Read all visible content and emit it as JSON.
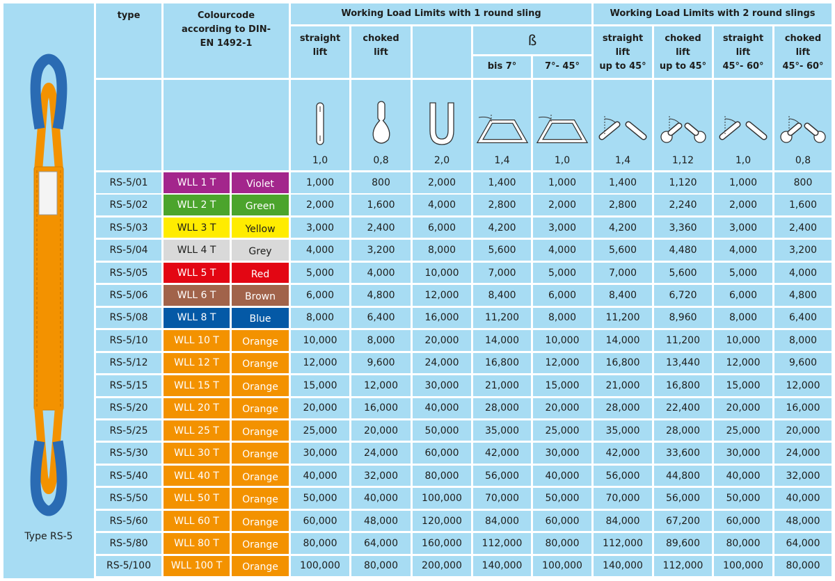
{
  "side": {
    "caption": "Type RS-5"
  },
  "header": {
    "type": "type",
    "colourcode": "Colourcode according to DIN-EN 1492-1",
    "group1": "Working Load Limits with 1 round sling",
    "group2": "Working Load Limits with 2 round slings",
    "beta": "ß",
    "columns": [
      {
        "lines": [
          "straight",
          "lift"
        ],
        "factor": "1,0"
      },
      {
        "lines": [
          "choked",
          "lift"
        ],
        "factor": "0,8"
      },
      {
        "factor": "2,0"
      },
      {
        "lines": [
          "bis 7°"
        ],
        "factor": "1,4"
      },
      {
        "lines": [
          "7°- 45°"
        ],
        "factor": "1,0"
      },
      {
        "lines": [
          "straight",
          "lift",
          "up to 45°"
        ],
        "factor": "1,4"
      },
      {
        "lines": [
          "choked",
          "lift",
          "up to 45°"
        ],
        "factor": "1,12"
      },
      {
        "lines": [
          "straight",
          "lift",
          "45°- 60°"
        ],
        "factor": "1,0"
      },
      {
        "lines": [
          "choked",
          "lift",
          "45°- 60°"
        ],
        "factor": "0,8"
      }
    ]
  },
  "rows": [
    {
      "type": "RS-5/01",
      "wll": "WLL 1 T",
      "colour": "Violet",
      "color": "#a3268c",
      "values": [
        "1,000",
        "800",
        "2,000",
        "1,400",
        "1,000",
        "1,400",
        "1,120",
        "1,000",
        "800"
      ]
    },
    {
      "type": "RS-5/02",
      "wll": "WLL 2 T",
      "colour": "Green",
      "color": "#4ba42c",
      "values": [
        "2,000",
        "1,600",
        "4,000",
        "2,800",
        "2,000",
        "2,800",
        "2,240",
        "2,000",
        "1,600"
      ]
    },
    {
      "type": "RS-5/03",
      "wll": "WLL 3 T",
      "colour": "Yellow",
      "color": "#ffec00",
      "values": [
        "3,000",
        "2,400",
        "6,000",
        "4,200",
        "3,000",
        "4,200",
        "3,360",
        "3,000",
        "2,400"
      ]
    },
    {
      "type": "RS-5/04",
      "wll": "WLL 4 T",
      "colour": "Grey",
      "color": "#d9d9d9",
      "values": [
        "4,000",
        "3,200",
        "8,000",
        "5,600",
        "4,000",
        "5,600",
        "4,480",
        "4,000",
        "3,200"
      ]
    },
    {
      "type": "RS-5/05",
      "wll": "WLL 5 T",
      "colour": "Red",
      "color": "#e30613",
      "values": [
        "5,000",
        "4,000",
        "10,000",
        "7,000",
        "5,000",
        "7,000",
        "5,600",
        "5,000",
        "4,000"
      ]
    },
    {
      "type": "RS-5/06",
      "wll": "WLL 6 T",
      "colour": "Brown",
      "color": "#a1634a",
      "values": [
        "6,000",
        "4,800",
        "12,000",
        "8,400",
        "6,000",
        "8,400",
        "6,720",
        "6,000",
        "4,800"
      ]
    },
    {
      "type": "RS-5/08",
      "wll": "WLL 8 T",
      "colour": "Blue",
      "color": "#0459a6",
      "values": [
        "8,000",
        "6,400",
        "16,000",
        "11,200",
        "8,000",
        "11,200",
        "8,960",
        "8,000",
        "6,400"
      ]
    },
    {
      "type": "RS-5/10",
      "wll": "WLL 10 T",
      "colour": "Orange",
      "color": "#f39200",
      "values": [
        "10,000",
        "8,000",
        "20,000",
        "14,000",
        "10,000",
        "14,000",
        "11,200",
        "10,000",
        "8,000"
      ]
    },
    {
      "type": "RS-5/12",
      "wll": "WLL 12 T",
      "colour": "Orange",
      "color": "#f39200",
      "values": [
        "12,000",
        "9,600",
        "24,000",
        "16,800",
        "12,000",
        "16,800",
        "13,440",
        "12,000",
        "9,600"
      ]
    },
    {
      "type": "RS-5/15",
      "wll": "WLL 15 T",
      "colour": "Orange",
      "color": "#f39200",
      "values": [
        "15,000",
        "12,000",
        "30,000",
        "21,000",
        "15,000",
        "21,000",
        "16,800",
        "15,000",
        "12,000"
      ]
    },
    {
      "type": "RS-5/20",
      "wll": "WLL 20 T",
      "colour": "Orange",
      "color": "#f39200",
      "values": [
        "20,000",
        "16,000",
        "40,000",
        "28,000",
        "20,000",
        "28,000",
        "22,400",
        "20,000",
        "16,000"
      ]
    },
    {
      "type": "RS-5/25",
      "wll": "WLL 25 T",
      "colour": "Orange",
      "color": "#f39200",
      "values": [
        "25,000",
        "20,000",
        "50,000",
        "35,000",
        "25,000",
        "35,000",
        "28,000",
        "25,000",
        "20,000"
      ]
    },
    {
      "type": "RS-5/30",
      "wll": "WLL 30 T",
      "colour": "Orange",
      "color": "#f39200",
      "values": [
        "30,000",
        "24,000",
        "60,000",
        "42,000",
        "30,000",
        "42,000",
        "33,600",
        "30,000",
        "24,000"
      ]
    },
    {
      "type": "RS-5/40",
      "wll": "WLL 40 T",
      "colour": "Orange",
      "color": "#f39200",
      "values": [
        "40,000",
        "32,000",
        "80,000",
        "56,000",
        "40,000",
        "56,000",
        "44,800",
        "40,000",
        "32,000"
      ]
    },
    {
      "type": "RS-5/50",
      "wll": "WLL 50 T",
      "colour": "Orange",
      "color": "#f39200",
      "values": [
        "50,000",
        "40,000",
        "100,000",
        "70,000",
        "50,000",
        "70,000",
        "56,000",
        "50,000",
        "40,000"
      ]
    },
    {
      "type": "RS-5/60",
      "wll": "WLL 60 T",
      "colour": "Orange",
      "color": "#f39200",
      "values": [
        "60,000",
        "48,000",
        "120,000",
        "84,000",
        "60,000",
        "84,000",
        "67,200",
        "60,000",
        "48,000"
      ]
    },
    {
      "type": "RS-5/80",
      "wll": "WLL 80 T",
      "colour": "Orange",
      "color": "#f39200",
      "values": [
        "80,000",
        "64,000",
        "160,000",
        "112,000",
        "80,000",
        "112,000",
        "89,600",
        "80,000",
        "64,000"
      ]
    },
    {
      "type": "RS-5/100",
      "wll": "WLL 100 T",
      "colour": "Orange",
      "color": "#f39200",
      "values": [
        "100,000",
        "80,000",
        "200,000",
        "140,000",
        "100,000",
        "140,000",
        "112,000",
        "100,000",
        "80,000"
      ]
    }
  ]
}
